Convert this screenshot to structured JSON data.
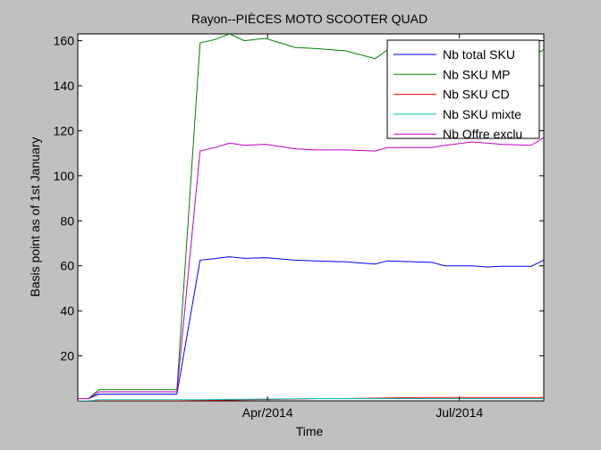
{
  "chart_data": {
    "type": "line",
    "title": "Rayon--PIÈCES MOTO SCOOTER QUAD",
    "xlabel": "Time",
    "ylabel": "Basis point as of 1st January",
    "xlim": [
      "2014-01-01",
      "2014-08-10"
    ],
    "ylim": [
      0,
      163
    ],
    "x_tick_labels": [
      {
        "date": "2014-04-01",
        "label": "Apr/2014"
      },
      {
        "date": "2014-07-01",
        "label": "Jul/2014"
      }
    ],
    "y_ticks": [
      20,
      40,
      60,
      80,
      100,
      120,
      140,
      160
    ],
    "grid": false,
    "legend_position": "top-right",
    "x": [
      "2014-01-01",
      "2014-01-06",
      "2014-01-11",
      "2014-01-20",
      "2014-02-03",
      "2014-02-17",
      "2014-02-28",
      "2014-03-07",
      "2014-03-14",
      "2014-03-21",
      "2014-03-31",
      "2014-04-14",
      "2014-04-24",
      "2014-05-08",
      "2014-05-22",
      "2014-05-28",
      "2014-06-04",
      "2014-06-18",
      "2014-06-24",
      "2014-07-07",
      "2014-07-14",
      "2014-07-21",
      "2014-08-04",
      "2014-08-10"
    ],
    "series": [
      {
        "name": "Nb total SKU",
        "color": "#0000ff",
        "values": [
          1,
          1,
          3,
          3,
          3,
          3,
          62.5,
          63.2,
          64,
          63.3,
          63.6,
          62.5,
          62.2,
          61.8,
          60.8,
          62.2,
          62,
          61.5,
          60,
          60,
          59.5,
          59.8,
          59.8,
          62.5
        ]
      },
      {
        "name": "Nb SKU MP",
        "color": "#008000",
        "values": [
          1,
          1,
          5,
          5,
          5,
          5,
          159,
          160.5,
          163,
          160,
          161,
          157,
          156.5,
          155.5,
          152,
          156,
          156,
          156,
          154,
          154,
          152,
          153,
          153,
          156
        ]
      },
      {
        "name": "Nb SKU CD",
        "color": "#ff0000",
        "values": [
          0,
          0,
          0,
          0,
          0,
          0,
          0.3,
          0.3,
          0.4,
          0.5,
          0.6,
          0.8,
          1,
          1,
          1.2,
          1.3,
          1.4,
          1.5,
          1.5,
          1.5,
          1.5,
          1.5,
          1.5,
          1.5
        ]
      },
      {
        "name": "Nb SKU mixte",
        "color": "#00bfbf",
        "values": [
          0,
          0,
          0.5,
          0.5,
          0.5,
          0.5,
          0.5,
          0.6,
          0.7,
          0.7,
          0.8,
          0.9,
          1,
          1,
          1,
          1,
          1,
          1,
          1,
          1,
          1,
          1,
          1,
          1
        ]
      },
      {
        "name": "Nb Offre exclu",
        "color": "#bf00bf",
        "values": [
          1,
          1,
          4,
          4,
          4,
          4,
          111,
          112.5,
          114.5,
          113.5,
          114,
          112,
          111.5,
          111.5,
          111,
          112.5,
          112.5,
          112.5,
          113.5,
          115,
          114.5,
          114,
          113.5,
          117
        ]
      }
    ]
  }
}
